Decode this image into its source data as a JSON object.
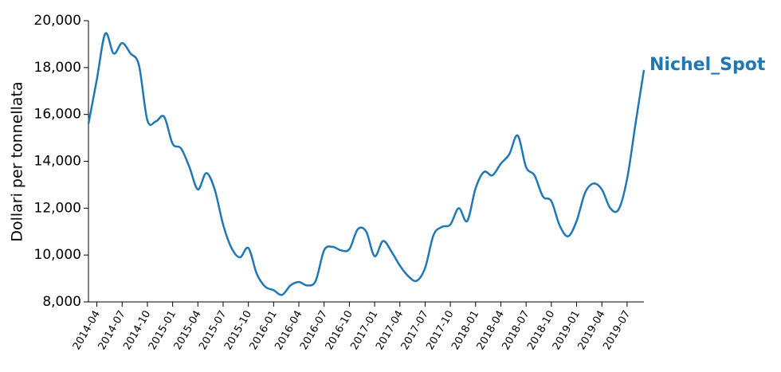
{
  "chart_data": {
    "type": "line",
    "y_label": "Dollari per tonnellata",
    "x": [
      "2014-03",
      "2014-04",
      "2014-05",
      "2014-06",
      "2014-07",
      "2014-08",
      "2014-09",
      "2014-10",
      "2014-11",
      "2014-12",
      "2015-01",
      "2015-02",
      "2015-03",
      "2015-04",
      "2015-05",
      "2015-06",
      "2015-07",
      "2015-08",
      "2015-09",
      "2015-10",
      "2015-11",
      "2015-12",
      "2016-01",
      "2016-02",
      "2016-03",
      "2016-04",
      "2016-05",
      "2016-06",
      "2016-07",
      "2016-08",
      "2016-09",
      "2016-10",
      "2016-11",
      "2016-12",
      "2017-01",
      "2017-02",
      "2017-03",
      "2017-04",
      "2017-05",
      "2017-06",
      "2017-07",
      "2017-08",
      "2017-09",
      "2017-10",
      "2017-11",
      "2017-12",
      "2018-01",
      "2018-02",
      "2018-03",
      "2018-04",
      "2018-05",
      "2018-06",
      "2018-07",
      "2018-08",
      "2018-09",
      "2018-10",
      "2018-11",
      "2018-12",
      "2019-01",
      "2019-02",
      "2019-03",
      "2019-04",
      "2019-05",
      "2019-06",
      "2019-07",
      "2019-08",
      "2019-09"
    ],
    "series": [
      {
        "name": "Nichel_Spot",
        "color": "#1f77b4",
        "values": [
          15600,
          17500,
          19450,
          18600,
          19050,
          18600,
          18100,
          15750,
          15700,
          15900,
          14750,
          14550,
          13750,
          12800,
          13500,
          12800,
          11300,
          10300,
          9900,
          10300,
          9200,
          8650,
          8500,
          8300,
          8700,
          8850,
          8700,
          8900,
          10200,
          10350,
          10200,
          10250,
          11100,
          11000,
          9950,
          10600,
          10150,
          9550,
          9100,
          8900,
          9450,
          10850,
          11200,
          11300,
          12000,
          11450,
          12850,
          13550,
          13400,
          13900,
          14300,
          15100,
          13750,
          13400,
          12500,
          12300,
          11250,
          10800,
          11450,
          12650,
          13050,
          12800,
          12000,
          11950,
          13250,
          15600,
          17900
        ]
      }
    ],
    "xlim": [
      "2014-03",
      "2019-09"
    ],
    "xticks": [
      "2014-04",
      "2014-07",
      "2014-10",
      "2015-01",
      "2015-04",
      "2015-07",
      "2015-10",
      "2016-01",
      "2016-04",
      "2016-07",
      "2016-10",
      "2017-01",
      "2017-04",
      "2017-07",
      "2017-10",
      "2018-01",
      "2018-04",
      "2018-07",
      "2018-10",
      "2019-01",
      "2019-04",
      "2019-07"
    ],
    "ylim": [
      8000,
      20000
    ],
    "yticks": [
      {
        "value": 8000,
        "label": "8,000"
      },
      {
        "value": 10000,
        "label": "10,000"
      },
      {
        "value": 12000,
        "label": "12,000"
      },
      {
        "value": 14000,
        "label": "14,000"
      },
      {
        "value": 16000,
        "label": "16,000"
      },
      {
        "value": 18000,
        "label": "18,000"
      },
      {
        "value": 20000,
        "label": "20,000"
      }
    ]
  }
}
